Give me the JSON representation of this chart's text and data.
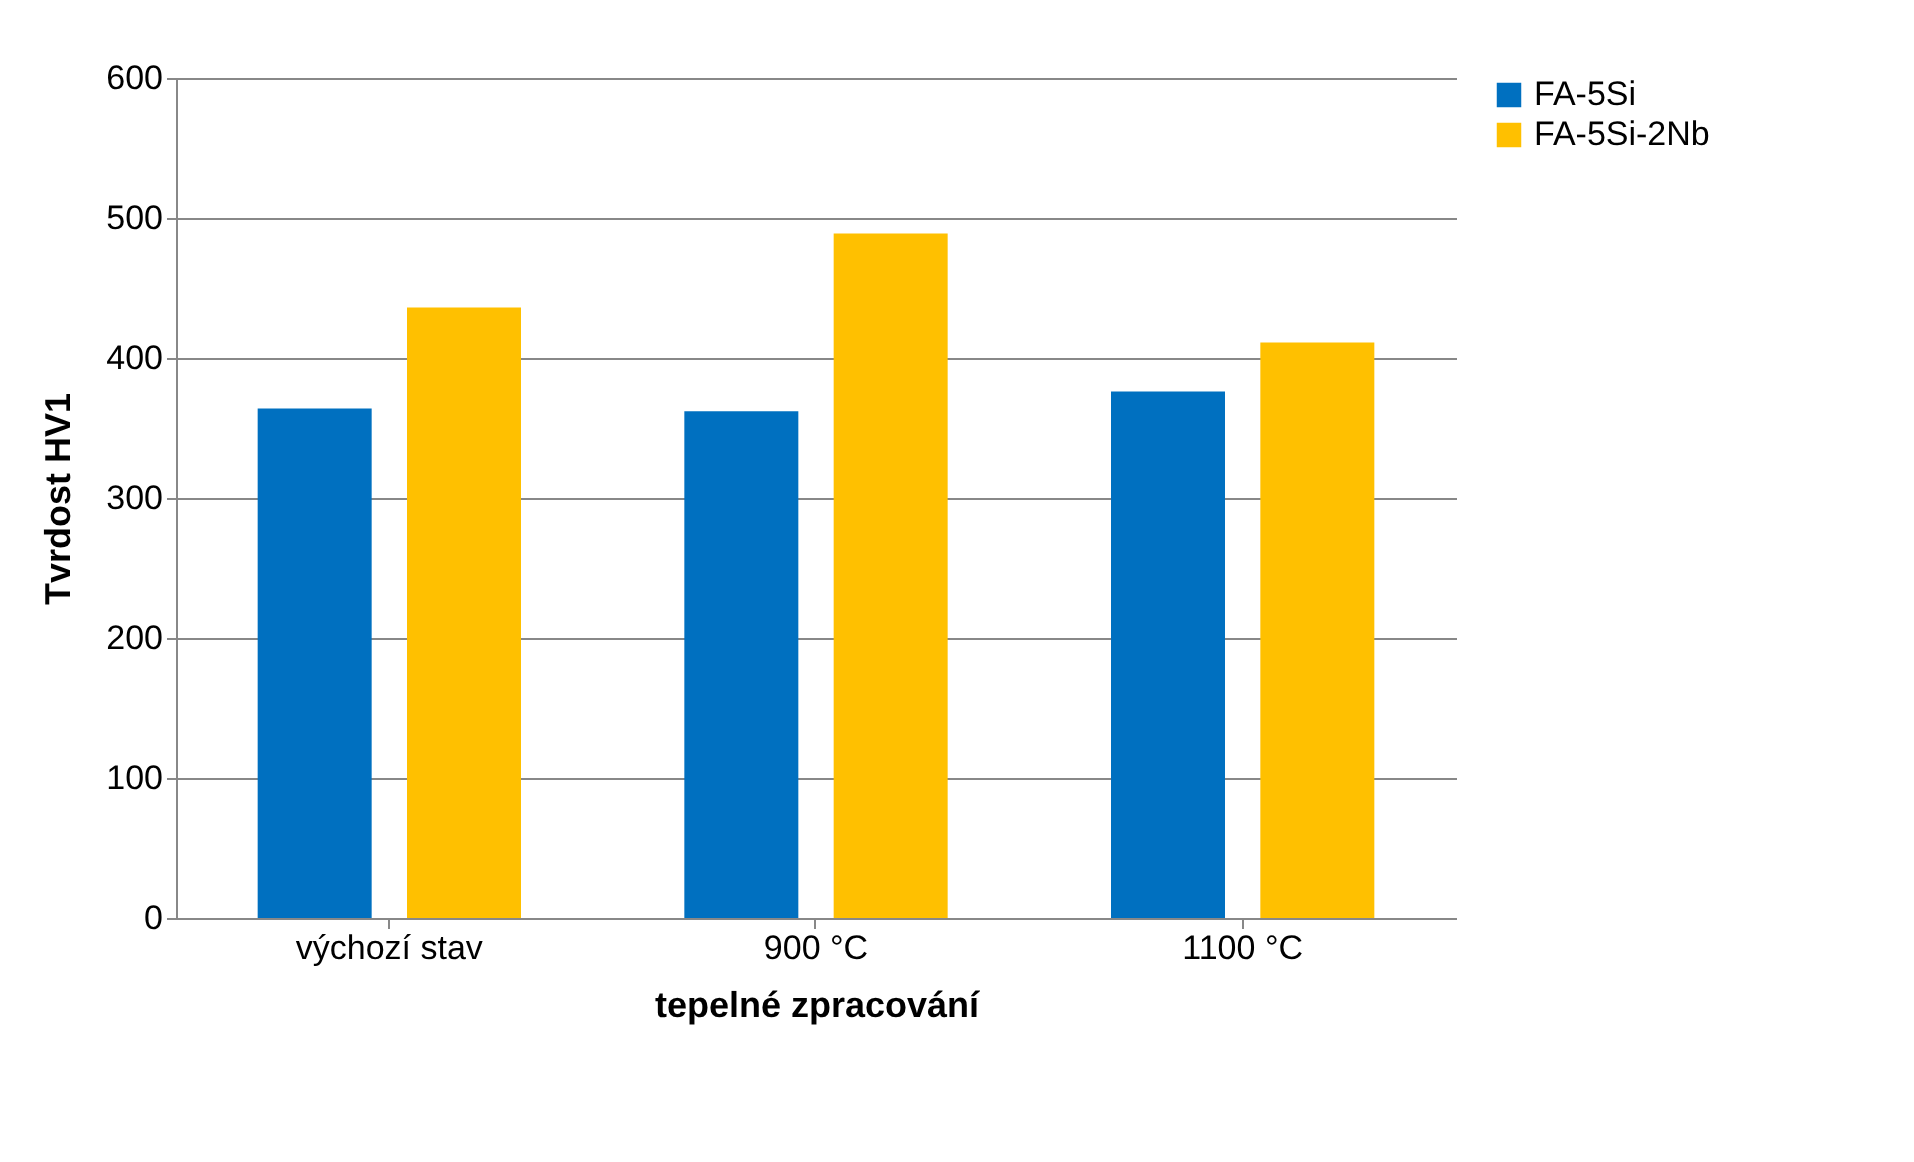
{
  "chart_data": {
    "type": "bar",
    "xlabel": "tepelné zpracování",
    "ylabel": "Tvrdost HV1",
    "categories": [
      "výchozí stav",
      "900 °C",
      "1100 °C"
    ],
    "series": [
      {
        "name": "FA-5Si",
        "color": "#0070c0",
        "values": [
          364,
          362,
          376
        ]
      },
      {
        "name": "FA-5Si-2Nb",
        "color": "#ffc000",
        "values": [
          436,
          489,
          411
        ]
      }
    ],
    "ylim": [
      0,
      600
    ],
    "yticks": [
      0,
      100,
      200,
      300,
      400,
      500,
      600
    ],
    "grid": "y",
    "legend": "right"
  }
}
